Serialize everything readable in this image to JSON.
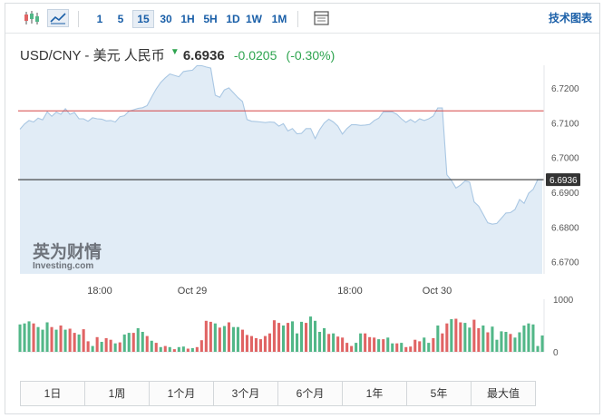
{
  "toolbar": {
    "intervals": [
      "1",
      "5",
      "15",
      "30",
      "1H",
      "5H",
      "1D",
      "1W",
      "1M"
    ],
    "active_interval": "15",
    "right_link": "技术图表",
    "icons": [
      "candlestick-icon",
      "line-chart-icon",
      "table-icon"
    ]
  },
  "quote": {
    "pair": "USD/CNY - 美元 人民币",
    "price": "6.6936",
    "change": "-0.0205",
    "change_pct": "(-0.30%)",
    "direction_icon": "down-arrow-icon",
    "change_color": "#2ea44f"
  },
  "watermark": {
    "brand_cn": "英为财情",
    "brand_en": "Investing.com"
  },
  "range_tabs": [
    "1日",
    "1周",
    "1个月",
    "3个月",
    "6个月",
    "1年",
    "5年",
    "最大值"
  ],
  "chart_data": [
    {
      "type": "area",
      "x_tick_labels": [
        "18:00",
        "Oct 29",
        "18:00",
        "Oct 30"
      ],
      "y_tick_labels": [
        "6.7200",
        "6.7100",
        "6.7000",
        "6.6900",
        "6.6800",
        "6.6700"
      ],
      "ylim": [
        6.6665,
        6.7265
      ],
      "current_price_label": "6.6936",
      "reference_line": 6.7134,
      "current_line": 6.6936,
      "grid": false,
      "colors": {
        "fill": "#e1ecf6",
        "line": "#a9c7e3",
        "ref_line": "#d64545",
        "current_line": "#222222",
        "label_bg": "#333333"
      },
      "values": [
        6.7081,
        6.7096,
        6.7106,
        6.7102,
        6.7113,
        6.7108,
        6.7131,
        6.7118,
        6.713,
        6.7124,
        6.714,
        6.7124,
        6.7129,
        6.7111,
        6.7111,
        6.7104,
        6.7114,
        6.7111,
        6.711,
        6.7105,
        6.7106,
        6.7102,
        6.7117,
        6.712,
        6.7133,
        6.7137,
        6.7141,
        6.7143,
        6.7149,
        6.7174,
        6.7197,
        6.7216,
        6.7229,
        6.724,
        6.7236,
        6.7232,
        6.7247,
        6.7249,
        6.7251,
        6.7264,
        6.7264,
        6.726,
        6.7257,
        6.7179,
        6.7173,
        6.7194,
        6.72,
        6.7186,
        6.7172,
        6.7161,
        6.7109,
        6.7104,
        6.7103,
        6.7102,
        6.71,
        6.7102,
        6.7101,
        6.709,
        6.7097,
        6.7076,
        6.7083,
        6.7068,
        6.7069,
        6.7083,
        6.7083,
        6.7054,
        6.708,
        6.7099,
        6.711,
        6.7102,
        6.709,
        6.7067,
        6.7083,
        6.7094,
        6.7094,
        6.7092,
        6.7093,
        6.7095,
        6.7106,
        6.7113,
        6.7131,
        6.7131,
        6.7131,
        6.7124,
        6.7111,
        6.7101,
        6.7109,
        6.7101,
        6.7111,
        6.7106,
        6.7111,
        6.7119,
        6.7142,
        6.7142,
        6.695,
        6.6934,
        6.6912,
        6.692,
        6.6932,
        6.6929,
        6.6872,
        6.686,
        6.6836,
        6.6812,
        6.6808,
        6.681,
        6.6825,
        6.684,
        6.6841,
        6.685,
        6.6879,
        6.6868,
        6.6897,
        6.6908,
        6.6936,
        6.6936
      ]
    },
    {
      "type": "bar",
      "y_tick_labels": [
        "1000",
        "0"
      ],
      "ylim": [
        0,
        1000
      ],
      "colors": {
        "up": "#52b788",
        "down": "#e06464"
      },
      "values": [
        520,
        540,
        580,
        540,
        470,
        420,
        560,
        470,
        420,
        500,
        420,
        440,
        360,
        330,
        430,
        200,
        110,
        280,
        190,
        260,
        230,
        160,
        180,
        330,
        360,
        360,
        450,
        380,
        300,
        210,
        170,
        90,
        110,
        90,
        50,
        90,
        100,
        60,
        70,
        90,
        220,
        590,
        570,
        540,
        460,
        490,
        560,
        470,
        470,
        420,
        320,
        300,
        260,
        240,
        300,
        350,
        600,
        550,
        500,
        550,
        580,
        350,
        570,
        550,
        670,
        590,
        380,
        450,
        340,
        350,
        290,
        270,
        170,
        110,
        170,
        350,
        350,
        280,
        270,
        240,
        240,
        270,
        160,
        160,
        170,
        90,
        100,
        230,
        200,
        270,
        170,
        260,
        500,
        350,
        540,
        620,
        630,
        560,
        550,
        460,
        610,
        450,
        500,
        370,
        480,
        230,
        390,
        380,
        340,
        270,
        370,
        500,
        540,
        520,
        110,
        310
      ],
      "directions": [
        "u",
        "u",
        "u",
        "d",
        "u",
        "u",
        "u",
        "d",
        "u",
        "d",
        "u",
        "d",
        "d",
        "u",
        "d",
        "d",
        "u",
        "d",
        "u",
        "d",
        "d",
        "u",
        "d",
        "u",
        "u",
        "d",
        "u",
        "u",
        "d",
        "u",
        "d",
        "u",
        "d",
        "u",
        "d",
        "u",
        "u",
        "d",
        "u",
        "d",
        "d",
        "d",
        "d",
        "u",
        "d",
        "u",
        "d",
        "u",
        "u",
        "d",
        "d",
        "d",
        "d",
        "d",
        "d",
        "d",
        "d",
        "d",
        "u",
        "d",
        "u",
        "u",
        "u",
        "d",
        "u",
        "u",
        "u",
        "u",
        "d",
        "u",
        "d",
        "d",
        "d",
        "d",
        "u",
        "u",
        "d",
        "d",
        "d",
        "u",
        "d",
        "u",
        "u",
        "d",
        "u",
        "d",
        "d",
        "d",
        "d",
        "u",
        "u",
        "d",
        "u",
        "d",
        "d",
        "u",
        "d",
        "d",
        "u",
        "u",
        "d",
        "d",
        "u",
        "d",
        "u",
        "u",
        "u",
        "u",
        "d",
        "u",
        "u",
        "u",
        "u",
        "u",
        "u",
        "u"
      ]
    }
  ]
}
